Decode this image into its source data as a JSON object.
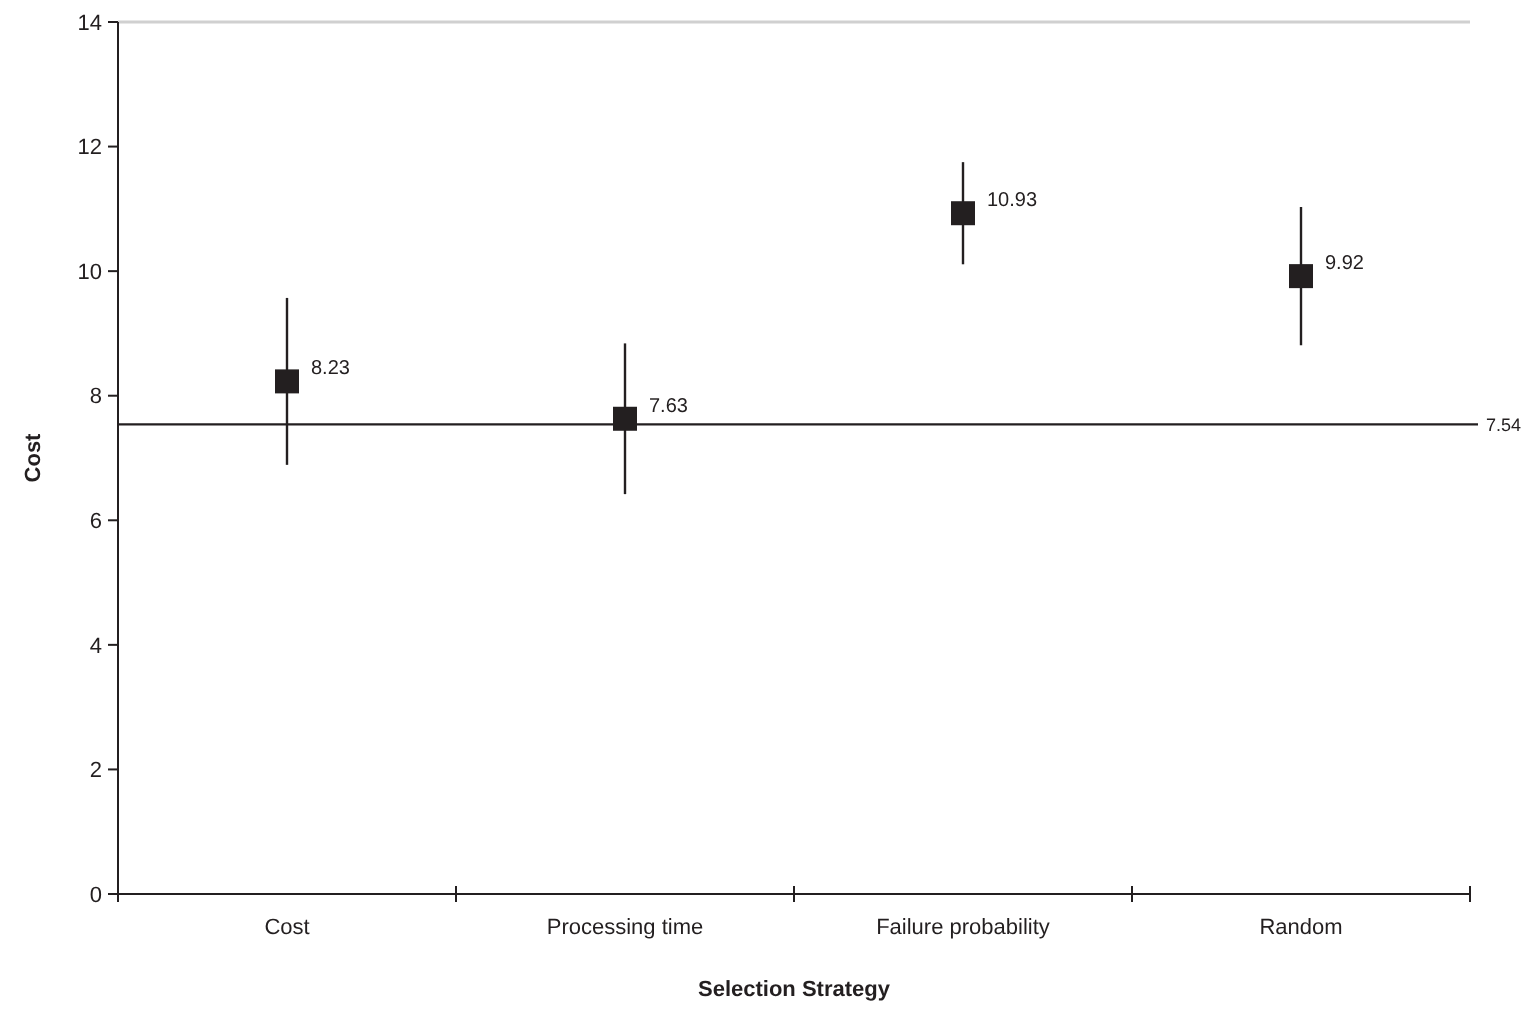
{
  "chart_data": {
    "type": "scatter",
    "xlabel": "Selection Strategy",
    "ylabel": "Cost",
    "categories": [
      "Cost",
      "Processing time",
      "Failure probability",
      "Random"
    ],
    "values": [
      8.23,
      7.63,
      10.93,
      9.92
    ],
    "errors": [
      1.34,
      1.21,
      0.82,
      1.11
    ],
    "color": "#231f20",
    "marker": "square",
    "data_labels": true,
    "ylim": [
      0,
      14
    ],
    "yticks": [
      0,
      2,
      4,
      6,
      8,
      10,
      12,
      14
    ],
    "grid": false,
    "ref_lines": [
      {
        "axis": "y",
        "value": 7.54,
        "label": "7.54",
        "color": "#231f20"
      }
    ]
  }
}
